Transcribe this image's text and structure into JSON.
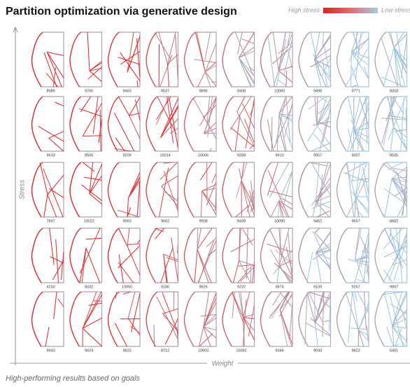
{
  "header": {
    "title": "Partition optimization via generative design",
    "legend_high": "High stress",
    "legend_low": "Low stress"
  },
  "axes": {
    "y_label": "Stress",
    "x_label": "Weight"
  },
  "caption": "High-performing results based on goals",
  "grid": {
    "rows": [
      [
        "8989",
        "9766",
        "9463",
        "9537",
        "9896",
        "8408",
        "10083",
        "9498",
        "9771",
        "8318"
      ],
      [
        "9633",
        "8500",
        "9209",
        "10014",
        "10006",
        "9258",
        "9910",
        "9957",
        "9007",
        "8505"
      ],
      [
        "7897",
        "10022",
        "9963",
        "9562",
        "9908",
        "9439",
        "10090",
        "9452",
        "9657",
        "8682"
      ],
      [
        "4150",
        "9332",
        "10055",
        "9180",
        "9826",
        "9237",
        "9876",
        "9109",
        "9267",
        "9907"
      ],
      [
        "9943",
        "9924",
        "9823",
        "8712",
        "10003",
        "10082",
        "9346",
        "9043",
        "9822",
        "5401"
      ]
    ]
  }
}
